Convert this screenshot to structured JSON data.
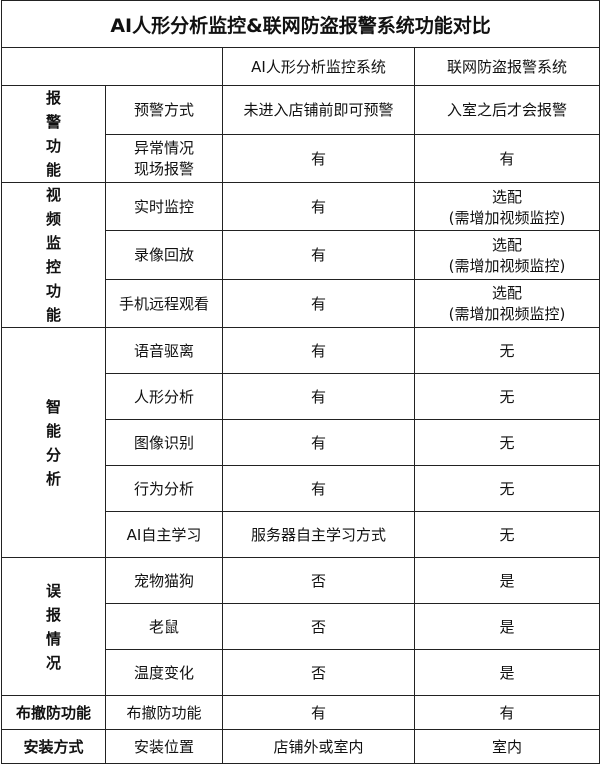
{
  "title": "AI人形分析监控&联网防盗报警系统功能对比",
  "columns": [
    "AI人形分析监控系统",
    "联网防盗报警系统"
  ],
  "groups": [
    {
      "label": "报警功能",
      "rows": [
        [
          "预警方式",
          "未进入店铺前即可预警",
          "入室之后才会报警"
        ],
        [
          "异常情况\n现场报警",
          "有",
          "有"
        ]
      ]
    },
    {
      "label": "视频监控功能",
      "rows": [
        [
          "实时监控",
          "有",
          "选配\n(需增加视频监控)"
        ],
        [
          "录像回放",
          "有",
          "选配\n(需增加视频监控)"
        ],
        [
          "手机远程观看",
          "有",
          "选配\n(需增加视频监控)"
        ]
      ]
    },
    {
      "label": "智能分析",
      "rows": [
        [
          "语音驱离",
          "有",
          "无"
        ],
        [
          "人形分析",
          "有",
          "无"
        ],
        [
          "图像识别",
          "有",
          "无"
        ],
        [
          "行为分析",
          "有",
          "无"
        ],
        [
          "AI自主学习",
          "服务器自主学习方式",
          "无"
        ]
      ]
    },
    {
      "label": "误报情况",
      "rows": [
        [
          "宠物猫狗",
          "否",
          "是"
        ],
        [
          "老鼠",
          "否",
          "是"
        ],
        [
          "温度变化",
          "否",
          "是"
        ]
      ]
    },
    {
      "label": "布撤防功能",
      "rows": [
        [
          "布撤防功能",
          "有",
          "有"
        ]
      ]
    },
    {
      "label": "安装方式",
      "rows": [
        [
          "安装位置",
          "店铺外或室内",
          "室内"
        ]
      ]
    }
  ]
}
